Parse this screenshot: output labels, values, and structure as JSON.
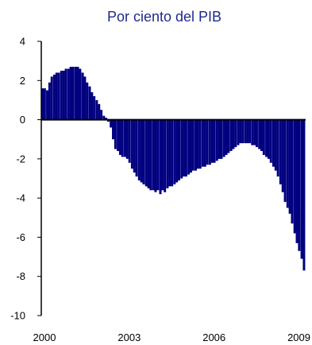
{
  "chart_data": {
    "type": "bar",
    "title": "Por ciento del PIB",
    "xlabel": "",
    "ylabel": "",
    "ylim": [
      -10,
      4
    ],
    "y_ticks": [
      4,
      2,
      0,
      -2,
      -4,
      -6,
      -8,
      -10
    ],
    "xlim": [
      2000.0,
      2009.35
    ],
    "x_ticks": [
      2000,
      2003,
      2006,
      2009
    ],
    "x_tick_labels": [
      "2000",
      "2003",
      "2006",
      "2009"
    ],
    "grid": false,
    "legend": "none",
    "bar_color": "#000080",
    "series": [
      {
        "x": [
          2000.0,
          2000.08,
          2000.17,
          2000.25,
          2000.33,
          2000.42,
          2000.5,
          2000.58,
          2000.67,
          2000.75,
          2000.83,
          2000.92,
          2001.0,
          2001.08,
          2001.17,
          2001.25,
          2001.33,
          2001.42,
          2001.5,
          2001.58,
          2001.67,
          2001.75,
          2001.83,
          2001.92,
          2002.0,
          2002.08,
          2002.17,
          2002.25,
          2002.33,
          2002.42,
          2002.5,
          2002.58,
          2002.67,
          2002.75,
          2002.83,
          2002.92,
          2003.0,
          2003.08,
          2003.17,
          2003.25,
          2003.33,
          2003.42,
          2003.5,
          2003.58,
          2003.67,
          2003.75,
          2003.83,
          2003.92,
          2004.0,
          2004.08,
          2004.17,
          2004.25,
          2004.33,
          2004.42,
          2004.5,
          2004.58,
          2004.67,
          2004.75,
          2004.83,
          2004.92,
          2005.0,
          2005.08,
          2005.17,
          2005.25,
          2005.33,
          2005.42,
          2005.5,
          2005.58,
          2005.67,
          2005.75,
          2005.83,
          2005.92,
          2006.0,
          2006.08,
          2006.17,
          2006.25,
          2006.33,
          2006.42,
          2006.5,
          2006.58,
          2006.67,
          2006.75,
          2006.83,
          2006.92,
          2007.0,
          2007.08,
          2007.17,
          2007.25,
          2007.33,
          2007.42,
          2007.5,
          2007.58,
          2007.67,
          2007.75,
          2007.83,
          2007.92,
          2008.0,
          2008.08,
          2008.17,
          2008.25,
          2008.33,
          2008.42,
          2008.5,
          2008.58,
          2008.67,
          2008.75,
          2008.83,
          2008.92,
          2009.0,
          2009.08,
          2009.17,
          2009.25
        ],
        "values": [
          1.6,
          1.6,
          1.5,
          1.9,
          2.2,
          2.3,
          2.4,
          2.4,
          2.5,
          2.5,
          2.6,
          2.6,
          2.7,
          2.7,
          2.7,
          2.7,
          2.6,
          2.4,
          2.2,
          1.9,
          1.7,
          1.4,
          1.2,
          1.0,
          0.8,
          0.5,
          0.2,
          0.1,
          -0.1,
          -0.4,
          -1.0,
          -1.5,
          -1.6,
          -1.8,
          -1.9,
          -1.9,
          -2.0,
          -2.2,
          -2.5,
          -2.7,
          -2.9,
          -3.1,
          -3.2,
          -3.3,
          -3.4,
          -3.5,
          -3.6,
          -3.6,
          -3.7,
          -3.6,
          -3.8,
          -3.6,
          -3.7,
          -3.5,
          -3.4,
          -3.4,
          -3.3,
          -3.2,
          -3.1,
          -3.0,
          -2.9,
          -2.9,
          -2.8,
          -2.7,
          -2.6,
          -2.6,
          -2.5,
          -2.5,
          -2.4,
          -2.4,
          -2.3,
          -2.3,
          -2.2,
          -2.2,
          -2.1,
          -2.0,
          -2.0,
          -1.9,
          -1.8,
          -1.7,
          -1.6,
          -1.5,
          -1.4,
          -1.3,
          -1.2,
          -1.2,
          -1.2,
          -1.2,
          -1.2,
          -1.3,
          -1.3,
          -1.4,
          -1.5,
          -1.6,
          -1.8,
          -1.9,
          -2.0,
          -2.2,
          -2.4,
          -2.6,
          -2.9,
          -3.3,
          -3.7,
          -4.2,
          -4.5,
          -4.8,
          -5.3,
          -5.8,
          -6.3,
          -6.7,
          -7.1,
          -7.7
        ]
      }
    ]
  }
}
